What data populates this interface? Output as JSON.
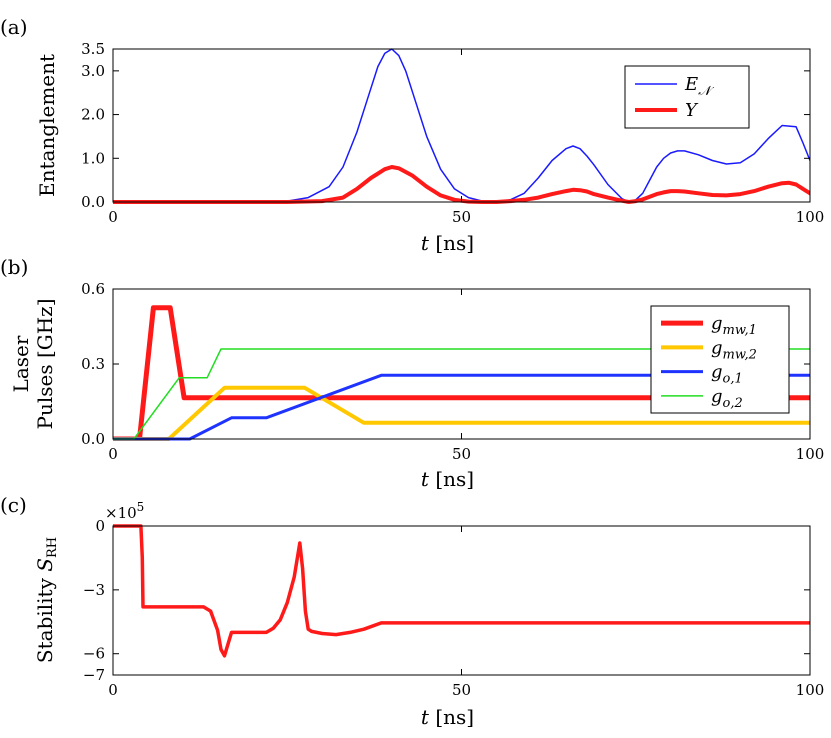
{
  "colors": {
    "blue": "#1a1aff",
    "red": "#ff1a1a",
    "yellow": "#ffc800",
    "navy_blue": "#1f33ff",
    "green": "#22dd22"
  },
  "chart_data": [
    {
      "id": "a",
      "panel_label": "(a)",
      "type": "line",
      "xlabel_var": "t",
      "xlabel_unit": "[ns]",
      "ylabel": [
        "Entanglement"
      ],
      "xlim": [
        0,
        100
      ],
      "ylim": [
        0,
        3.5
      ],
      "xticks": [
        0,
        50,
        100
      ],
      "xtick_labels": [
        "0",
        "50",
        "100"
      ],
      "yticks": [
        0,
        1,
        2,
        3,
        3.5
      ],
      "ytick_labels": [
        "0.0",
        "1.0",
        "2.0",
        "3.0",
        "3.5"
      ],
      "legend_position": "top-right",
      "series": [
        {
          "name": "E_N",
          "legend_text": "E",
          "legend_sub": "𝒩",
          "color": "#1a1aff",
          "width": 1.5,
          "x": [
            0,
            20,
            25,
            28,
            31,
            33,
            35,
            37,
            38,
            39,
            40,
            41,
            42,
            43,
            45,
            47,
            49,
            51,
            53,
            55,
            57,
            59,
            61,
            63,
            65,
            66,
            67,
            68,
            69,
            71,
            73,
            74,
            75,
            76,
            77,
            78,
            79,
            80,
            81,
            82,
            84,
            86,
            88,
            90,
            92,
            94,
            96,
            98,
            99,
            100
          ],
          "y": [
            0,
            0,
            0.02,
            0.1,
            0.35,
            0.8,
            1.6,
            2.6,
            3.1,
            3.4,
            3.5,
            3.35,
            3.0,
            2.5,
            1.5,
            0.75,
            0.3,
            0.1,
            0.02,
            0,
            0.05,
            0.2,
            0.55,
            0.95,
            1.22,
            1.28,
            1.22,
            1.05,
            0.85,
            0.4,
            0.08,
            0,
            0.05,
            0.2,
            0.5,
            0.8,
            1.0,
            1.12,
            1.17,
            1.17,
            1.08,
            0.95,
            0.87,
            0.9,
            1.1,
            1.45,
            1.75,
            1.72,
            1.35,
            0.95
          ]
        },
        {
          "name": "Upsilon",
          "legend_text": "Υ",
          "color": "#ff1a1a",
          "width": 4,
          "x": [
            0,
            25,
            30,
            33,
            35,
            37,
            39,
            40,
            41,
            43,
            45,
            47,
            49,
            51,
            53,
            55,
            57,
            59,
            61,
            63,
            65,
            66,
            67,
            68,
            69,
            71,
            73,
            74,
            75,
            76,
            77,
            78,
            79,
            80,
            81,
            82,
            84,
            86,
            88,
            90,
            92,
            94,
            96,
            97,
            98,
            99,
            100
          ],
          "y": [
            0,
            0,
            0.02,
            0.1,
            0.3,
            0.55,
            0.75,
            0.8,
            0.77,
            0.6,
            0.35,
            0.15,
            0.05,
            0.01,
            0,
            0,
            0.02,
            0.05,
            0.1,
            0.18,
            0.25,
            0.28,
            0.27,
            0.24,
            0.18,
            0.1,
            0.03,
            0,
            0.02,
            0.06,
            0.12,
            0.18,
            0.22,
            0.25,
            0.25,
            0.24,
            0.2,
            0.16,
            0.15,
            0.18,
            0.25,
            0.35,
            0.43,
            0.44,
            0.4,
            0.3,
            0.2
          ]
        }
      ]
    },
    {
      "id": "b",
      "panel_label": "(b)",
      "type": "line",
      "xlabel_var": "t",
      "xlabel_unit": "[ns]",
      "ylabel": [
        "Laser",
        "Pulses [GHz]"
      ],
      "xlim": [
        0,
        100
      ],
      "ylim": [
        0,
        0.6
      ],
      "xticks": [
        0,
        50,
        100
      ],
      "xtick_labels": [
        "0",
        "50",
        "100"
      ],
      "yticks": [
        0,
        0.3,
        0.6
      ],
      "ytick_labels": [
        "0.0",
        "0.3",
        "0.6"
      ],
      "legend_position": "top-right",
      "series": [
        {
          "name": "g_mw,1",
          "legend_text": "g",
          "legend_sub": "mw,1",
          "color": "#ff1a1a",
          "width": 5,
          "x": [
            0,
            3.8,
            5.8,
            6,
            8,
            8.2,
            10.2,
            100
          ],
          "y": [
            0,
            0,
            0.525,
            0.525,
            0.525,
            0.525,
            0.165,
            0.165
          ]
        },
        {
          "name": "g_mw,2",
          "legend_text": "g",
          "legend_sub": "mw,2",
          "color": "#ffc800",
          "width": 4,
          "x": [
            0,
            8,
            16,
            27.5,
            36,
            100
          ],
          "y": [
            0,
            0,
            0.205,
            0.205,
            0.065,
            0.065
          ]
        },
        {
          "name": "g_o,1",
          "legend_text": "g",
          "legend_sub": "o,1",
          "color": "#1f33ff",
          "width": 3,
          "x": [
            0,
            11,
            17,
            22,
            38.5,
            100
          ],
          "y": [
            0,
            0,
            0.085,
            0.085,
            0.255,
            0.255
          ]
        },
        {
          "name": "g_o,2",
          "legend_text": "g",
          "legend_sub": "o,2",
          "color": "#22dd22",
          "width": 1.5,
          "x": [
            0,
            3,
            9.5,
            13.5,
            15.5,
            100
          ],
          "y": [
            0,
            0,
            0.245,
            0.245,
            0.36,
            0.36
          ]
        }
      ]
    },
    {
      "id": "c",
      "panel_label": "(c)",
      "type": "line",
      "xlabel_var": "t",
      "xlabel_unit": "[ns]",
      "ylabel": [
        "Stability S_RH"
      ],
      "ylabel_main": "Stability ",
      "ylabel_var": "S",
      "ylabel_sub": "RH",
      "multiplier_base": "×10",
      "multiplier_exp": "5",
      "xlim": [
        0,
        100
      ],
      "ylim": [
        -7,
        0
      ],
      "xticks": [
        0,
        50,
        100
      ],
      "xtick_labels": [
        "0",
        "50",
        "100"
      ],
      "yticks": [
        0,
        -3,
        -6,
        -7
      ],
      "ytick_labels": [
        "0",
        "−3",
        "−6",
        "−7"
      ],
      "series": [
        {
          "name": "S_RH",
          "color": "#ff1a1a",
          "width": 3.5,
          "x": [
            0,
            4,
            4.2,
            4.3,
            11,
            13,
            13.5,
            14,
            15,
            15.5,
            16,
            17,
            22,
            23,
            24,
            25,
            26,
            26.8,
            27.2,
            27.6,
            28,
            28.5,
            30,
            32,
            34,
            36,
            38.5,
            40,
            100
          ],
          "y": [
            0,
            0,
            -1.5,
            -3.8,
            -3.8,
            -3.8,
            -3.9,
            -4.0,
            -4.9,
            -5.8,
            -6.1,
            -5.0,
            -5.0,
            -4.8,
            -4.4,
            -3.6,
            -2.4,
            -0.8,
            -2.0,
            -4.0,
            -4.85,
            -4.95,
            -5.05,
            -5.1,
            -5.0,
            -4.85,
            -4.55,
            -4.55,
            -4.55
          ]
        }
      ]
    }
  ]
}
